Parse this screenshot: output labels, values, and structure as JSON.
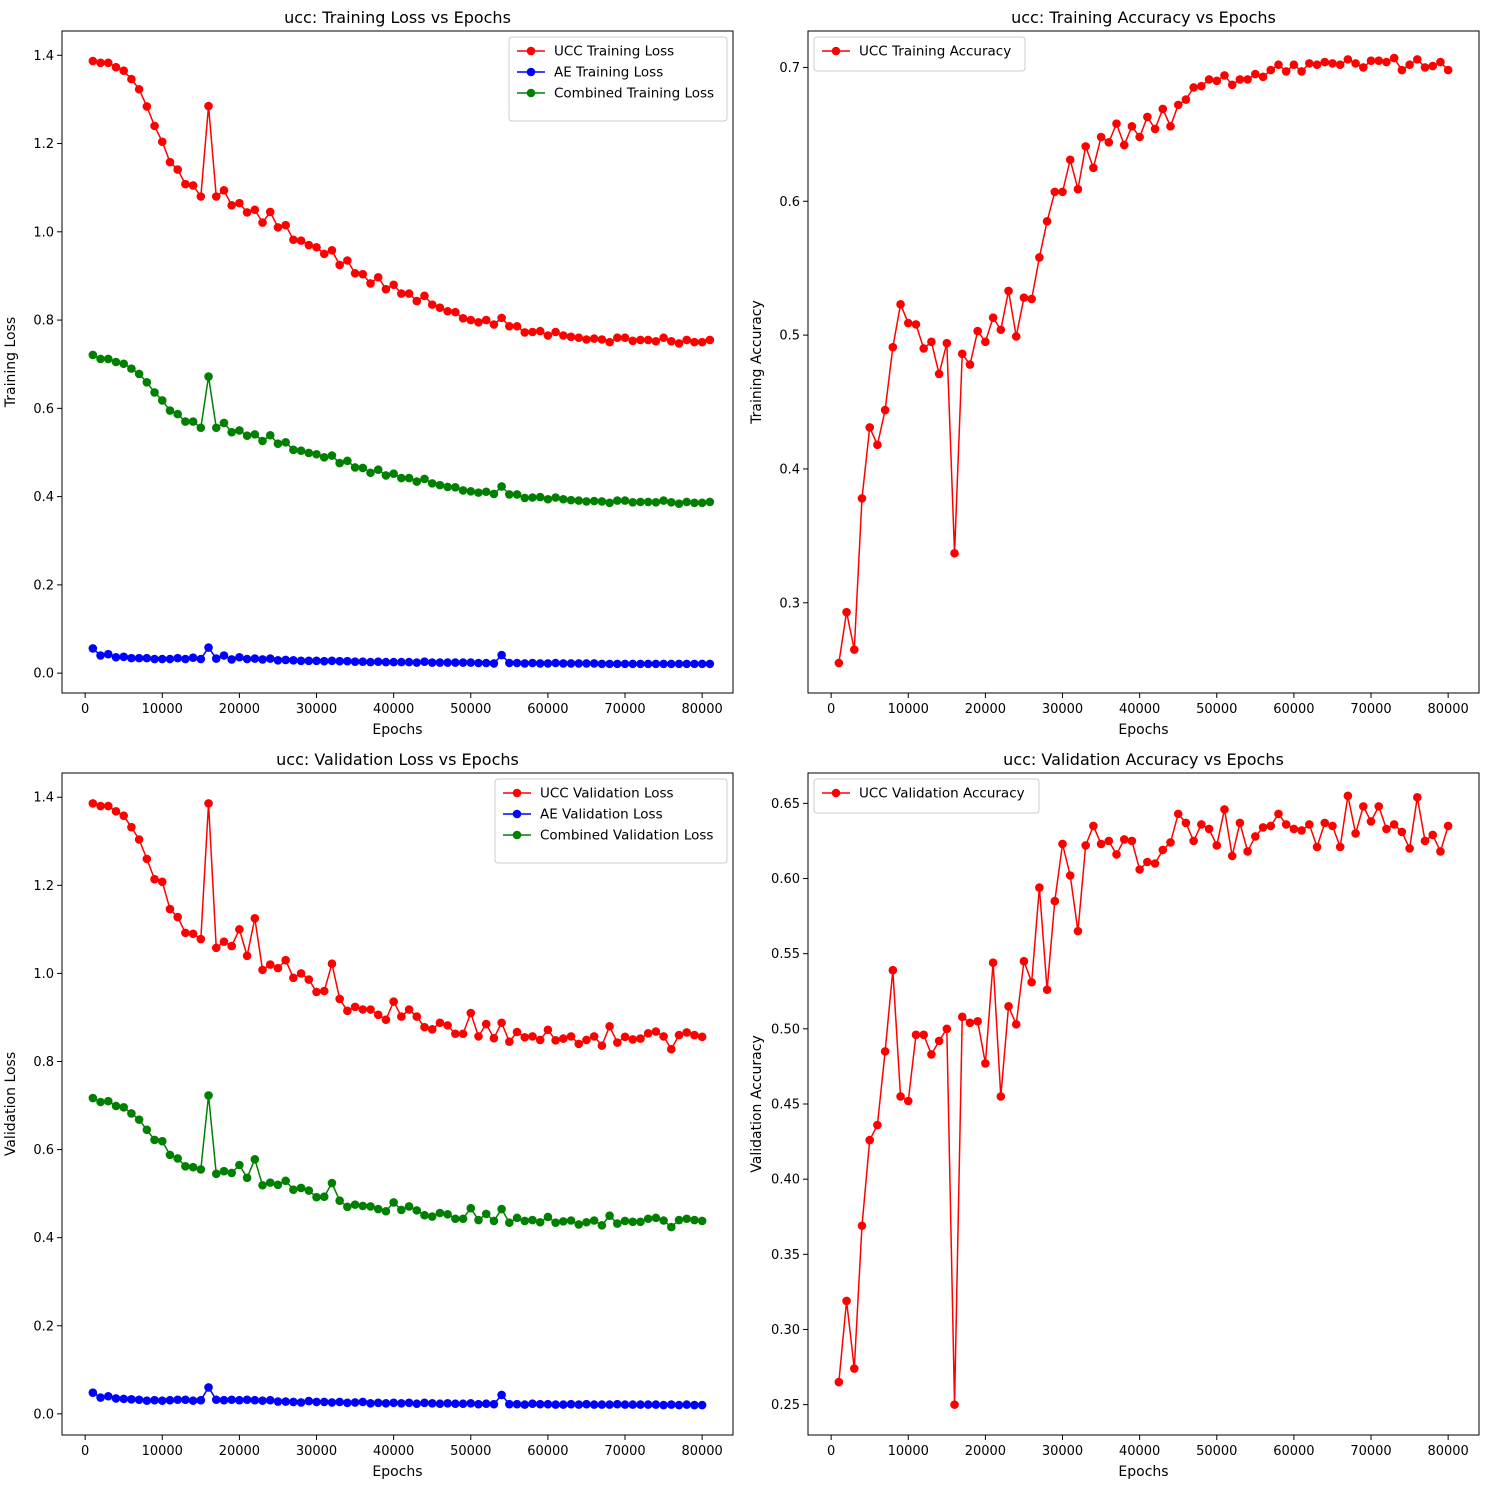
{
  "chart_data": [
    {
      "type": "line",
      "title": "ucc: Training Loss vs Epochs",
      "xlabel": "Epochs",
      "ylabel": "Training Loss",
      "xlim": [
        -3000,
        84000
      ],
      "ylim": [
        -0.045,
        1.455
      ],
      "xticks": [
        0,
        10000,
        20000,
        30000,
        40000,
        50000,
        60000,
        70000,
        80000
      ],
      "yticks": [
        0.0,
        0.2,
        0.4,
        0.6,
        0.8,
        1.0,
        1.2,
        1.4
      ],
      "ytick_decimals": 1,
      "legend": "top-right",
      "x_start": 1000,
      "x_step": 1000,
      "series": [
        {
          "name": "UCC Training Loss",
          "color": "#ff0000",
          "values": [
            1.387,
            1.383,
            1.383,
            1.373,
            1.365,
            1.346,
            1.323,
            1.284,
            1.24,
            1.204,
            1.158,
            1.141,
            1.108,
            1.105,
            1.08,
            1.285,
            1.08,
            1.094,
            1.06,
            1.065,
            1.044,
            1.05,
            1.021,
            1.045,
            1.01,
            1.015,
            0.982,
            0.98,
            0.97,
            0.965,
            0.95,
            0.958,
            0.925,
            0.935,
            0.906,
            0.904,
            0.883,
            0.897,
            0.87,
            0.88,
            0.86,
            0.86,
            0.843,
            0.855,
            0.835,
            0.828,
            0.82,
            0.818,
            0.804,
            0.8,
            0.795,
            0.8,
            0.79,
            0.805,
            0.786,
            0.786,
            0.772,
            0.773,
            0.775,
            0.765,
            0.773,
            0.765,
            0.762,
            0.76,
            0.756,
            0.758,
            0.756,
            0.75,
            0.76,
            0.76,
            0.753,
            0.755,
            0.755,
            0.752,
            0.76,
            0.752,
            0.747,
            0.755,
            0.75,
            0.75,
            0.755
          ]
        },
        {
          "name": "AE Training Loss",
          "color": "#0000ff",
          "values": [
            0.056,
            0.04,
            0.043,
            0.036,
            0.037,
            0.034,
            0.034,
            0.034,
            0.032,
            0.032,
            0.032,
            0.034,
            0.032,
            0.035,
            0.032,
            0.058,
            0.033,
            0.04,
            0.031,
            0.036,
            0.032,
            0.033,
            0.031,
            0.033,
            0.029,
            0.03,
            0.029,
            0.028,
            0.028,
            0.028,
            0.027,
            0.028,
            0.027,
            0.027,
            0.026,
            0.026,
            0.025,
            0.026,
            0.025,
            0.025,
            0.025,
            0.025,
            0.024,
            0.026,
            0.024,
            0.024,
            0.024,
            0.024,
            0.024,
            0.024,
            0.023,
            0.023,
            0.022,
            0.041,
            0.023,
            0.023,
            0.022,
            0.023,
            0.022,
            0.022,
            0.023,
            0.022,
            0.022,
            0.022,
            0.022,
            0.022,
            0.021,
            0.021,
            0.021,
            0.021,
            0.021,
            0.021,
            0.021,
            0.021,
            0.021,
            0.021,
            0.021,
            0.021,
            0.021,
            0.021,
            0.021
          ]
        },
        {
          "name": "Combined Training Loss",
          "color": "#008000",
          "values": [
            0.721,
            0.712,
            0.712,
            0.705,
            0.701,
            0.69,
            0.678,
            0.659,
            0.636,
            0.618,
            0.595,
            0.587,
            0.57,
            0.57,
            0.556,
            0.672,
            0.556,
            0.567,
            0.546,
            0.55,
            0.538,
            0.541,
            0.526,
            0.539,
            0.52,
            0.523,
            0.506,
            0.504,
            0.499,
            0.496,
            0.489,
            0.493,
            0.476,
            0.481,
            0.466,
            0.465,
            0.454,
            0.461,
            0.448,
            0.452,
            0.442,
            0.442,
            0.434,
            0.44,
            0.43,
            0.426,
            0.422,
            0.421,
            0.414,
            0.412,
            0.409,
            0.411,
            0.406,
            0.423,
            0.405,
            0.405,
            0.397,
            0.398,
            0.399,
            0.394,
            0.398,
            0.394,
            0.392,
            0.391,
            0.389,
            0.39,
            0.389,
            0.386,
            0.391,
            0.391,
            0.387,
            0.388,
            0.388,
            0.387,
            0.391,
            0.387,
            0.384,
            0.388,
            0.386,
            0.386,
            0.388
          ]
        }
      ]
    },
    {
      "type": "line",
      "title": "ucc: Training Accuracy vs Epochs",
      "xlabel": "Epochs",
      "ylabel": "Training Accuracy",
      "xlim": [
        -3000,
        84000
      ],
      "ylim": [
        0.2326,
        0.7272
      ],
      "xticks": [
        0,
        10000,
        20000,
        30000,
        40000,
        50000,
        60000,
        70000,
        80000
      ],
      "yticks": [
        0.3,
        0.4,
        0.5,
        0.6,
        0.7
      ],
      "ytick_decimals": 1,
      "legend": "top-left",
      "x_start": 1000,
      "x_step": 1000,
      "series": [
        {
          "name": "UCC Training Accuracy",
          "color": "#ff0000",
          "values": [
            0.255,
            0.293,
            0.265,
            0.378,
            0.431,
            0.418,
            0.444,
            0.491,
            0.523,
            0.509,
            0.508,
            0.49,
            0.495,
            0.471,
            0.494,
            0.337,
            0.486,
            0.478,
            0.503,
            0.495,
            0.513,
            0.504,
            0.533,
            0.499,
            0.528,
            0.527,
            0.558,
            0.585,
            0.607,
            0.607,
            0.631,
            0.609,
            0.641,
            0.625,
            0.648,
            0.644,
            0.658,
            0.642,
            0.656,
            0.648,
            0.663,
            0.654,
            0.669,
            0.656,
            0.672,
            0.676,
            0.685,
            0.686,
            0.691,
            0.69,
            0.694,
            0.687,
            0.691,
            0.691,
            0.695,
            0.693,
            0.698,
            0.702,
            0.697,
            0.702,
            0.697,
            0.703,
            0.702,
            0.704,
            0.703,
            0.702,
            0.706,
            0.703,
            0.7,
            0.705,
            0.705,
            0.704,
            0.707,
            0.698,
            0.702,
            0.706,
            0.7,
            0.701,
            0.704,
            0.698
          ]
        }
      ]
    },
    {
      "type": "line",
      "title": "ucc: Validation Loss vs Epochs",
      "xlabel": "Epochs",
      "ylabel": "Validation Loss",
      "xlim": [
        -3000,
        84000
      ],
      "ylim": [
        -0.048,
        1.455
      ],
      "xticks": [
        0,
        10000,
        20000,
        30000,
        40000,
        50000,
        60000,
        70000,
        80000
      ],
      "yticks": [
        0.0,
        0.2,
        0.4,
        0.6,
        0.8,
        1.0,
        1.2,
        1.4
      ],
      "ytick_decimals": 1,
      "legend": "top-right",
      "x_start": 1000,
      "x_step": 1000,
      "series": [
        {
          "name": "UCC Validation Loss",
          "color": "#ff0000",
          "values": [
            1.386,
            1.38,
            1.38,
            1.368,
            1.358,
            1.332,
            1.304,
            1.26,
            1.214,
            1.208,
            1.146,
            1.128,
            1.092,
            1.09,
            1.078,
            1.386,
            1.058,
            1.072,
            1.062,
            1.1,
            1.04,
            1.125,
            1.008,
            1.02,
            1.012,
            1.03,
            0.99,
            1.0,
            0.986,
            0.958,
            0.96,
            1.022,
            0.942,
            0.915,
            0.924,
            0.918,
            0.918,
            0.906,
            0.895,
            0.936,
            0.902,
            0.918,
            0.902,
            0.878,
            0.873,
            0.888,
            0.882,
            0.863,
            0.863,
            0.91,
            0.857,
            0.885,
            0.853,
            0.888,
            0.845,
            0.867,
            0.855,
            0.857,
            0.849,
            0.872,
            0.848,
            0.852,
            0.857,
            0.84,
            0.849,
            0.857,
            0.836,
            0.88,
            0.843,
            0.856,
            0.85,
            0.852,
            0.864,
            0.868,
            0.857,
            0.828,
            0.86,
            0.866,
            0.86,
            0.856
          ]
        },
        {
          "name": "AE Validation Loss",
          "color": "#0000ff",
          "values": [
            0.048,
            0.037,
            0.04,
            0.035,
            0.034,
            0.033,
            0.032,
            0.03,
            0.031,
            0.03,
            0.031,
            0.032,
            0.032,
            0.03,
            0.031,
            0.06,
            0.032,
            0.031,
            0.032,
            0.031,
            0.032,
            0.031,
            0.03,
            0.031,
            0.028,
            0.028,
            0.027,
            0.026,
            0.029,
            0.027,
            0.027,
            0.026,
            0.027,
            0.025,
            0.026,
            0.027,
            0.024,
            0.025,
            0.024,
            0.025,
            0.024,
            0.025,
            0.023,
            0.025,
            0.024,
            0.023,
            0.024,
            0.023,
            0.023,
            0.024,
            0.022,
            0.023,
            0.022,
            0.043,
            0.022,
            0.022,
            0.021,
            0.023,
            0.022,
            0.022,
            0.021,
            0.021,
            0.022,
            0.021,
            0.022,
            0.021,
            0.021,
            0.021,
            0.022,
            0.021,
            0.021,
            0.021,
            0.021,
            0.021,
            0.02,
            0.021,
            0.02,
            0.021,
            0.02,
            0.02
          ]
        },
        {
          "name": "Combined Validation Loss",
          "color": "#008000",
          "values": [
            0.717,
            0.708,
            0.71,
            0.699,
            0.696,
            0.682,
            0.668,
            0.645,
            0.622,
            0.619,
            0.588,
            0.58,
            0.562,
            0.56,
            0.555,
            0.723,
            0.545,
            0.551,
            0.547,
            0.565,
            0.536,
            0.578,
            0.519,
            0.525,
            0.52,
            0.529,
            0.509,
            0.513,
            0.507,
            0.492,
            0.493,
            0.524,
            0.484,
            0.47,
            0.475,
            0.472,
            0.471,
            0.465,
            0.46,
            0.48,
            0.463,
            0.471,
            0.462,
            0.451,
            0.448,
            0.456,
            0.453,
            0.443,
            0.443,
            0.467,
            0.44,
            0.454,
            0.438,
            0.465,
            0.434,
            0.445,
            0.438,
            0.44,
            0.435,
            0.447,
            0.434,
            0.437,
            0.439,
            0.43,
            0.435,
            0.439,
            0.428,
            0.45,
            0.432,
            0.438,
            0.436,
            0.436,
            0.443,
            0.445,
            0.439,
            0.424,
            0.44,
            0.443,
            0.44,
            0.438
          ]
        }
      ]
    },
    {
      "type": "line",
      "title": "ucc: Validation Accuracy vs Epochs",
      "xlabel": "Epochs",
      "ylabel": "Validation Accuracy",
      "xlim": [
        -3000,
        84000
      ],
      "ylim": [
        0.2298,
        0.6702
      ],
      "xticks": [
        0,
        10000,
        20000,
        30000,
        40000,
        50000,
        60000,
        70000,
        80000
      ],
      "yticks": [
        0.25,
        0.3,
        0.35,
        0.4,
        0.45,
        0.5,
        0.55,
        0.6,
        0.65
      ],
      "ytick_decimals": 2,
      "legend": "top-left",
      "x_start": 1000,
      "x_step": 1000,
      "series": [
        {
          "name": "UCC Validation Accuracy",
          "color": "#ff0000",
          "values": [
            0.265,
            0.319,
            0.274,
            0.369,
            0.426,
            0.436,
            0.485,
            0.539,
            0.455,
            0.452,
            0.496,
            0.496,
            0.483,
            0.492,
            0.5,
            0.25,
            0.508,
            0.504,
            0.505,
            0.477,
            0.544,
            0.455,
            0.515,
            0.503,
            0.545,
            0.531,
            0.594,
            0.526,
            0.585,
            0.623,
            0.602,
            0.565,
            0.622,
            0.635,
            0.623,
            0.625,
            0.616,
            0.626,
            0.625,
            0.606,
            0.611,
            0.61,
            0.619,
            0.624,
            0.643,
            0.637,
            0.625,
            0.636,
            0.633,
            0.622,
            0.646,
            0.615,
            0.637,
            0.618,
            0.628,
            0.634,
            0.635,
            0.643,
            0.636,
            0.633,
            0.632,
            0.636,
            0.621,
            0.637,
            0.635,
            0.621,
            0.655,
            0.63,
            0.648,
            0.638,
            0.648,
            0.633,
            0.636,
            0.631,
            0.62,
            0.654,
            0.625,
            0.629,
            0.618,
            0.635
          ]
        }
      ]
    }
  ]
}
